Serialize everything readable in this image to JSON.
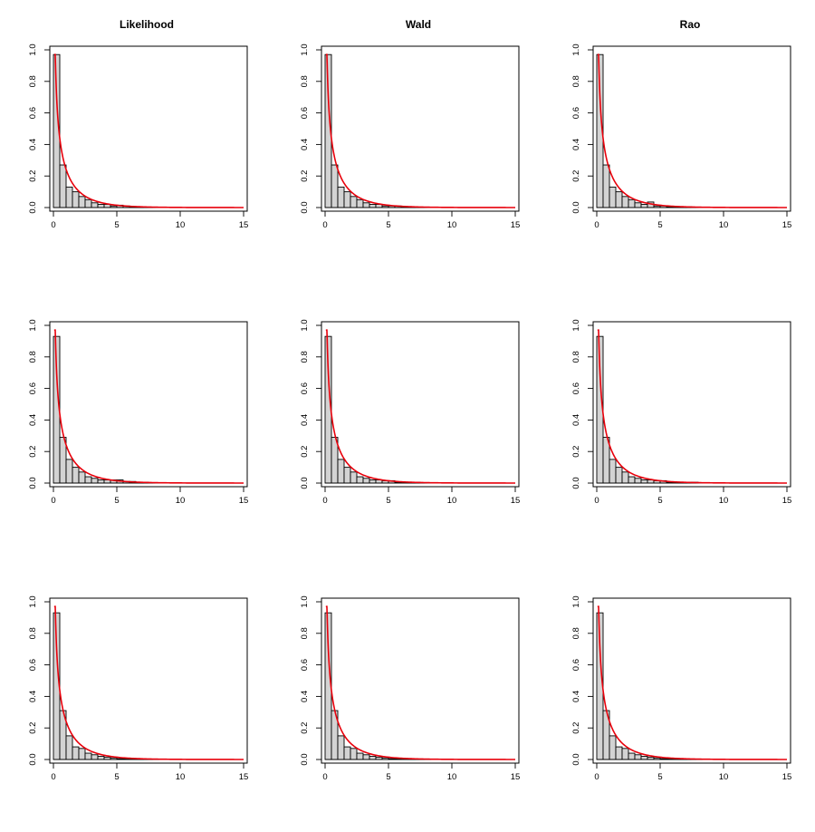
{
  "column_titles": [
    "Likelihood",
    "Wald",
    "Rao"
  ],
  "colors": {
    "bar_fill": "#d3d3d3",
    "bar_stroke": "#000000",
    "curve": "#e8000b",
    "frame": "#000000"
  },
  "chart_data": [
    {
      "type": "bar",
      "title": "Likelihood",
      "xlabel": "",
      "ylabel": "",
      "xlim": [
        0,
        15
      ],
      "ylim": [
        0,
        1.0
      ],
      "x_ticks": [
        "0",
        "5",
        "10",
        "15"
      ],
      "y_ticks": [
        "0.0",
        "0.2",
        "0.4",
        "0.6",
        "0.8",
        "1.0"
      ],
      "bin_width": 0.5,
      "bin_starts": [
        0,
        0.5,
        1,
        1.5,
        2,
        2.5,
        3,
        3.5,
        4,
        4.5,
        5,
        5.5,
        6,
        6.5,
        7,
        7.5
      ],
      "values": [
        0.97,
        0.27,
        0.13,
        0.1,
        0.07,
        0.05,
        0.03,
        0.02,
        0.02,
        0.01,
        0.015,
        0.01,
        0.005,
        0.003,
        0.002,
        0.001
      ],
      "curve": "chi-square density, df = 1"
    },
    {
      "type": "bar",
      "title": "Wald",
      "xlabel": "",
      "ylabel": "",
      "xlim": [
        0,
        15
      ],
      "ylim": [
        0,
        1.0
      ],
      "x_ticks": [
        "0",
        "5",
        "10",
        "15"
      ],
      "y_ticks": [
        "0.0",
        "0.2",
        "0.4",
        "0.6",
        "0.8",
        "1.0"
      ],
      "bin_width": 0.5,
      "bin_starts": [
        0,
        0.5,
        1,
        1.5,
        2,
        2.5,
        3,
        3.5,
        4,
        4.5,
        5,
        5.5,
        6,
        6.5,
        7,
        7.5
      ],
      "values": [
        0.97,
        0.27,
        0.13,
        0.1,
        0.07,
        0.05,
        0.03,
        0.02,
        0.02,
        0.01,
        0.01,
        0.01,
        0.005,
        0.005,
        0.003,
        0.002
      ],
      "curve": "chi-square density, df = 1"
    },
    {
      "type": "bar",
      "title": "Rao",
      "xlabel": "",
      "ylabel": "",
      "xlim": [
        0,
        15
      ],
      "ylim": [
        0,
        1.0
      ],
      "x_ticks": [
        "0",
        "5",
        "10",
        "15"
      ],
      "y_ticks": [
        "0.0",
        "0.2",
        "0.4",
        "0.6",
        "0.8",
        "1.0"
      ],
      "bin_width": 0.5,
      "bin_starts": [
        0,
        0.5,
        1,
        1.5,
        2,
        2.5,
        3,
        3.5,
        4,
        4.5,
        5,
        5.5,
        6,
        6.5,
        7,
        7.5
      ],
      "values": [
        0.97,
        0.27,
        0.13,
        0.1,
        0.07,
        0.05,
        0.03,
        0.02,
        0.035,
        0.01,
        0.01,
        0.005,
        0.005,
        0.003,
        0.005,
        0.002
      ],
      "curve": "chi-square density, df = 1"
    },
    {
      "type": "bar",
      "title": "",
      "xlabel": "",
      "ylabel": "",
      "xlim": [
        0,
        15
      ],
      "ylim": [
        0,
        1.0
      ],
      "x_ticks": [
        "0",
        "5",
        "10",
        "15"
      ],
      "y_ticks": [
        "0.0",
        "0.2",
        "0.4",
        "0.6",
        "0.8",
        "1.0"
      ],
      "bin_width": 0.5,
      "bin_starts": [
        0,
        0.5,
        1,
        1.5,
        2,
        2.5,
        3,
        3.5,
        4,
        4.5,
        5,
        5.5,
        6,
        6.5,
        7,
        7.5
      ],
      "values": [
        0.93,
        0.29,
        0.15,
        0.1,
        0.07,
        0.04,
        0.03,
        0.02,
        0.02,
        0.02,
        0.02,
        0.01,
        0.01,
        0.005,
        0.005,
        0.003
      ],
      "curve": "chi-square density, df = 1"
    },
    {
      "type": "bar",
      "title": "",
      "xlabel": "",
      "ylabel": "",
      "xlim": [
        0,
        15
      ],
      "ylim": [
        0,
        1.0
      ],
      "x_ticks": [
        "0",
        "5",
        "10",
        "15"
      ],
      "y_ticks": [
        "0.0",
        "0.2",
        "0.4",
        "0.6",
        "0.8",
        "1.0"
      ],
      "bin_width": 0.5,
      "bin_starts": [
        0,
        0.5,
        1,
        1.5,
        2,
        2.5,
        3,
        3.5,
        4,
        4.5,
        5,
        5.5,
        6,
        6.5,
        7,
        7.5
      ],
      "values": [
        0.93,
        0.29,
        0.15,
        0.1,
        0.07,
        0.04,
        0.03,
        0.02,
        0.02,
        0.015,
        0.015,
        0.005,
        0.005,
        0.005,
        0.005,
        0.003
      ],
      "curve": "chi-square density, df = 1"
    },
    {
      "type": "bar",
      "title": "",
      "xlabel": "",
      "ylabel": "",
      "xlim": [
        0,
        15
      ],
      "ylim": [
        0,
        1.0
      ],
      "x_ticks": [
        "0",
        "5",
        "10",
        "15"
      ],
      "y_ticks": [
        "0.0",
        "0.2",
        "0.4",
        "0.6",
        "0.8",
        "1.0"
      ],
      "bin_width": 0.5,
      "bin_starts": [
        0,
        0.5,
        1,
        1.5,
        2,
        2.5,
        3,
        3.5,
        4,
        4.5,
        5,
        5.5,
        6,
        6.5,
        7,
        7.5
      ],
      "values": [
        0.93,
        0.29,
        0.15,
        0.1,
        0.07,
        0.04,
        0.03,
        0.02,
        0.02,
        0.015,
        0.015,
        0.005,
        0.005,
        0.005,
        0.005,
        0.005
      ],
      "curve": "chi-square density, df = 1"
    },
    {
      "type": "bar",
      "title": "",
      "xlabel": "",
      "ylabel": "",
      "xlim": [
        0,
        15
      ],
      "ylim": [
        0,
        1.0
      ],
      "x_ticks": [
        "0",
        "5",
        "10",
        "15"
      ],
      "y_ticks": [
        "0.0",
        "0.2",
        "0.4",
        "0.6",
        "0.8",
        "1.0"
      ],
      "bin_width": 0.5,
      "bin_starts": [
        0,
        0.5,
        1,
        1.5,
        2,
        2.5,
        3,
        3.5,
        4,
        4.5,
        5,
        5.5,
        6,
        6.5,
        7,
        7.5,
        8,
        8.5,
        9,
        9.5
      ],
      "values": [
        0.93,
        0.31,
        0.15,
        0.08,
        0.07,
        0.04,
        0.03,
        0.02,
        0.015,
        0.01,
        0.005,
        0.005,
        0.005,
        0.003,
        0.003,
        0.003,
        0.003,
        0.002,
        0.002,
        0.003
      ],
      "curve": "chi-square density, df = 1"
    },
    {
      "type": "bar",
      "title": "",
      "xlabel": "",
      "ylabel": "",
      "xlim": [
        0,
        15
      ],
      "ylim": [
        0,
        1.0
      ],
      "x_ticks": [
        "0",
        "5",
        "10",
        "15"
      ],
      "y_ticks": [
        "0.0",
        "0.2",
        "0.4",
        "0.6",
        "0.8",
        "1.0"
      ],
      "bin_width": 0.5,
      "bin_starts": [
        0,
        0.5,
        1,
        1.5,
        2,
        2.5,
        3,
        3.5,
        4,
        4.5,
        5,
        5.5,
        6,
        6.5,
        7,
        7.5,
        8,
        8.5,
        9,
        9.5
      ],
      "values": [
        0.93,
        0.31,
        0.15,
        0.08,
        0.07,
        0.04,
        0.03,
        0.02,
        0.015,
        0.01,
        0.005,
        0.005,
        0.005,
        0.003,
        0.003,
        0.003,
        0.003,
        0.002,
        0.002,
        0.003
      ],
      "curve": "chi-square density, df = 1"
    },
    {
      "type": "bar",
      "title": "",
      "xlabel": "",
      "ylabel": "",
      "xlim": [
        0,
        15
      ],
      "ylim": [
        0,
        1.0
      ],
      "x_ticks": [
        "0",
        "5",
        "10",
        "15"
      ],
      "y_ticks": [
        "0.0",
        "0.2",
        "0.4",
        "0.6",
        "0.8",
        "1.0"
      ],
      "bin_width": 0.5,
      "bin_starts": [
        0,
        0.5,
        1,
        1.5,
        2,
        2.5,
        3,
        3.5,
        4,
        4.5,
        5,
        5.5,
        6,
        6.5,
        7,
        7.5,
        8,
        8.5,
        9,
        9.5
      ],
      "values": [
        0.93,
        0.31,
        0.15,
        0.08,
        0.07,
        0.04,
        0.03,
        0.02,
        0.015,
        0.01,
        0.005,
        0.005,
        0.005,
        0.003,
        0.003,
        0.003,
        0.003,
        0.002,
        0.002,
        0.003
      ],
      "curve": "chi-square density, df = 1"
    }
  ]
}
